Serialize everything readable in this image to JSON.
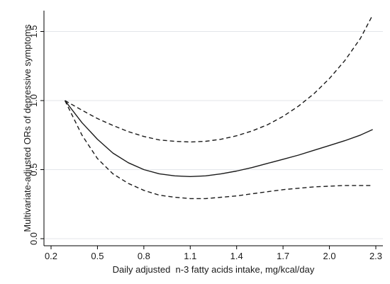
{
  "chart_data": {
    "type": "line",
    "xlabel": "Daily adjusted  n-3 fatty acids intake, mg/kcal/day",
    "ylabel": "Multivariate-adjusted ORs of depressive symptoms",
    "xlim": [
      0.2,
      2.3
    ],
    "ylim": [
      0.0,
      1.6
    ],
    "x_ticks": [
      0.2,
      0.5,
      0.8,
      1.1,
      1.4,
      1.7,
      2.0,
      2.3
    ],
    "x_tick_labels": [
      "0.2",
      "0.5",
      "0.8",
      "1.1",
      "1.4",
      "1.7",
      "2.0",
      "2.3"
    ],
    "y_ticks": [
      0.0,
      0.5,
      1.0,
      1.5
    ],
    "y_tick_labels": [
      "0.0",
      "0.5",
      "1.0",
      "1.5"
    ],
    "grid": "horizontal",
    "legend": false,
    "colors": {
      "line": "#1a1a1a",
      "grid": "#e3e6ea",
      "frame": "#000000",
      "outer": "#ffffff"
    },
    "series": [
      {
        "style": "solid",
        "x": [
          0.29,
          0.4,
          0.5,
          0.6,
          0.7,
          0.8,
          0.9,
          1.0,
          1.1,
          1.2,
          1.3,
          1.4,
          1.5,
          1.6,
          1.7,
          1.8,
          1.9,
          2.0,
          2.1,
          2.2,
          2.28
        ],
        "y": [
          1.0,
          0.84,
          0.72,
          0.62,
          0.55,
          0.5,
          0.47,
          0.455,
          0.45,
          0.455,
          0.47,
          0.49,
          0.515,
          0.545,
          0.575,
          0.605,
          0.64,
          0.675,
          0.71,
          0.75,
          0.79
        ]
      },
      {
        "style": "dashed",
        "x": [
          0.29,
          0.4,
          0.5,
          0.6,
          0.7,
          0.8,
          0.9,
          1.0,
          1.1,
          1.2,
          1.3,
          1.4,
          1.5,
          1.6,
          1.7,
          1.8,
          1.9,
          2.0,
          2.1,
          2.2,
          2.28
        ],
        "y": [
          1.0,
          0.93,
          0.87,
          0.82,
          0.775,
          0.74,
          0.715,
          0.705,
          0.7,
          0.705,
          0.72,
          0.745,
          0.78,
          0.825,
          0.885,
          0.96,
          1.05,
          1.16,
          1.29,
          1.45,
          1.62
        ]
      },
      {
        "style": "dashed",
        "x": [
          0.29,
          0.4,
          0.5,
          0.6,
          0.7,
          0.8,
          0.9,
          1.0,
          1.1,
          1.2,
          1.3,
          1.4,
          1.5,
          1.6,
          1.7,
          1.8,
          1.9,
          2.0,
          2.1,
          2.2,
          2.28
        ],
        "y": [
          1.0,
          0.75,
          0.58,
          0.47,
          0.4,
          0.35,
          0.315,
          0.3,
          0.29,
          0.29,
          0.3,
          0.31,
          0.325,
          0.34,
          0.355,
          0.365,
          0.375,
          0.38,
          0.385,
          0.385,
          0.385
        ]
      }
    ]
  }
}
